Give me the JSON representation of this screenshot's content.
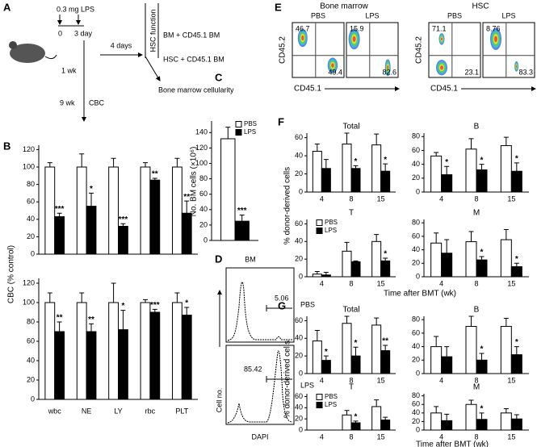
{
  "panel_letters": [
    "A",
    "B",
    "C",
    "D",
    "E",
    "F",
    "G"
  ],
  "panel_a": {
    "dose": "0.3 mg LPS",
    "day0": "0",
    "day3": "3 day",
    "wait": "4 days",
    "week1": "1 wk",
    "week9": "9 wk",
    "cbc": "CBC",
    "hsc_function": "HSC function",
    "bm_transplant": "BM + CD45.1 BM",
    "hsc_transplant": "HSC + CD45.1 BM",
    "cellularity": "Bone marrow cellularity"
  },
  "panel_d": {
    "title": "BM",
    "pbs": "PBS",
    "lps": "LPS",
    "pbs_gate": "5.06",
    "lps_gate": "85.42",
    "ylabel": "Cell no.",
    "xlabel": "DAPI"
  },
  "panel_e": {
    "groups": [
      {
        "title": "Bone marrow",
        "ylabel": "CD45.2",
        "xlabel": "CD45.1",
        "plots": [
          {
            "label": "PBS",
            "upper_left": "46.7",
            "lower_right": "49.4"
          },
          {
            "label": "LPS",
            "upper_left": "15.9",
            "lower_right": "82.6"
          }
        ]
      },
      {
        "title": "HSC",
        "ylabel": "CD45.2",
        "xlabel": "CD45.1",
        "plots": [
          {
            "label": "PBS",
            "upper_left": "71.1",
            "lower_right": "23.1"
          },
          {
            "label": "LPS",
            "upper_left": "8.76",
            "lower_right": "83.3"
          }
        ]
      }
    ]
  },
  "chart_data": [
    {
      "type": "bar",
      "ylabel": "CBC (% control)",
      "categories": [
        null,
        null,
        null,
        null,
        null
      ],
      "series": [
        {
          "color": "#ffffff",
          "values": [
            100,
            100,
            100,
            100,
            100
          ],
          "errors": [
            5,
            15,
            10,
            5,
            10
          ]
        },
        {
          "color": "#000000",
          "values": [
            43,
            55,
            32,
            85,
            47
          ],
          "errors": [
            4,
            15,
            3,
            2,
            14
          ]
        }
      ],
      "annotations": [
        "***",
        "*",
        "***",
        "**",
        "**"
      ],
      "ylim": [
        0,
        125
      ],
      "yticks": [
        0,
        20,
        40,
        60,
        80,
        100,
        120
      ]
    },
    {
      "type": "bar",
      "categories": [
        "wbc",
        "NE",
        "LY",
        "rbc",
        "PLT"
      ],
      "series": [
        {
          "color": "#ffffff",
          "values": [
            100,
            100,
            100,
            100,
            100
          ],
          "errors": [
            10,
            10,
            20,
            3,
            10
          ]
        },
        {
          "color": "#000000",
          "values": [
            70,
            70,
            72,
            90,
            87
          ],
          "errors": [
            10,
            8,
            20,
            3,
            8
          ]
        }
      ],
      "annotations": [
        "**",
        "**",
        "*",
        "***",
        "*"
      ],
      "ylim": [
        0,
        125
      ],
      "yticks": [
        0,
        20,
        40,
        60,
        80,
        100,
        120
      ]
    },
    {
      "type": "bar",
      "ylabel": "No. BM cells (×10⁶)",
      "categories": [
        null
      ],
      "legend": "top-right",
      "series": [
        {
          "name": "PBS",
          "color": "#ffffff",
          "values": [
            132
          ],
          "errors": [
            15
          ]
        },
        {
          "name": "LPS",
          "color": "#000000",
          "values": [
            25
          ],
          "errors": [
            8
          ]
        }
      ],
      "annotations": [
        "***"
      ],
      "ylim": [
        0,
        155
      ],
      "yticks": [
        0,
        20,
        40,
        60,
        80,
        100,
        120,
        140
      ]
    },
    {
      "type": "bar",
      "title": "Total",
      "ylabel": "% donor-derived cells",
      "categories": [
        "4",
        "8",
        "15"
      ],
      "series": [
        {
          "color": "#ffffff",
          "values": [
            45,
            53,
            52
          ],
          "errors": [
            8,
            12,
            12
          ]
        },
        {
          "color": "#000000",
          "values": [
            26,
            26,
            23
          ],
          "errors": [
            10,
            3,
            8
          ]
        }
      ],
      "annotations": [
        null,
        "*",
        "*"
      ],
      "ylim": [
        0,
        65
      ],
      "yticks": [
        0,
        20,
        40,
        60
      ]
    },
    {
      "type": "bar",
      "title": "B",
      "categories": [
        "4",
        "8",
        "15"
      ],
      "series": [
        {
          "color": "#ffffff",
          "values": [
            52,
            62,
            67
          ],
          "errors": [
            5,
            15,
            12
          ]
        },
        {
          "color": "#000000",
          "values": [
            25,
            32,
            30
          ],
          "errors": [
            12,
            8,
            12
          ]
        }
      ],
      "annotations": [
        "*",
        "*",
        "*"
      ],
      "ylim": [
        0,
        85
      ],
      "yticks": [
        0,
        20,
        40,
        60,
        80
      ]
    },
    {
      "type": "bar",
      "title": "T",
      "xlabel": "Time after BMT (wk)",
      "categories": [
        "4",
        "8",
        "15"
      ],
      "legend": "top-left",
      "series": [
        {
          "name": "PBS",
          "color": "#ffffff",
          "values": [
            3,
            29,
            40
          ],
          "errors": [
            3,
            10,
            8
          ]
        },
        {
          "name": "LPS",
          "color": "#000000",
          "values": [
            2,
            17,
            18
          ],
          "errors": [
            3,
            1,
            3
          ]
        }
      ],
      "annotations": [
        null,
        null,
        "*"
      ],
      "ylim": [
        0,
        65
      ],
      "yticks": [
        0,
        20,
        40,
        60
      ]
    },
    {
      "type": "bar",
      "title": "M",
      "categories": [
        "4",
        "8",
        "15"
      ],
      "series": [
        {
          "color": "#ffffff",
          "values": [
            50,
            52,
            55
          ],
          "errors": [
            15,
            15,
            15
          ]
        },
        {
          "color": "#000000",
          "values": [
            35,
            25,
            15
          ],
          "errors": [
            20,
            5,
            5
          ]
        }
      ],
      "annotations": [
        null,
        "*",
        "*"
      ],
      "ylim": [
        0,
        85
      ],
      "yticks": [
        0,
        20,
        40,
        60,
        80
      ]
    },
    {
      "type": "bar",
      "title": "Total",
      "ylabel": "% donor-derived cells",
      "categories": [
        "4",
        "8",
        "15"
      ],
      "series": [
        {
          "color": "#ffffff",
          "values": [
            37,
            57,
            55
          ],
          "errors": [
            12,
            8,
            8
          ]
        },
        {
          "color": "#000000",
          "values": [
            15,
            20,
            26
          ],
          "errors": [
            5,
            10,
            6
          ]
        }
      ],
      "annotations": [
        "*",
        "*",
        "**"
      ],
      "ylim": [
        0,
        65
      ],
      "yticks": [
        0,
        20,
        40,
        60
      ]
    },
    {
      "type": "bar",
      "title": "B",
      "categories": [
        "4",
        "8",
        "15"
      ],
      "series": [
        {
          "color": "#ffffff",
          "values": [
            40,
            70,
            70
          ],
          "errors": [
            15,
            15,
            12
          ]
        },
        {
          "color": "#000000",
          "values": [
            25,
            20,
            28
          ],
          "errors": [
            15,
            10,
            12
          ]
        }
      ],
      "annotations": [
        null,
        "*",
        "*"
      ],
      "ylim": [
        0,
        85
      ],
      "yticks": [
        0,
        20,
        40,
        60,
        80
      ]
    },
    {
      "type": "bar",
      "title": "T",
      "xlabel": "Time after BMT (wk)",
      "categories": [
        "4",
        "8",
        "15"
      ],
      "legend": "top-left",
      "series": [
        {
          "name": "PBS",
          "color": "#ffffff",
          "values": [
            0,
            27,
            42
          ],
          "errors": [
            0,
            8,
            12
          ]
        },
        {
          "name": "LPS",
          "color": "#000000",
          "values": [
            0,
            13,
            18
          ],
          "errors": [
            0,
            3,
            5
          ]
        }
      ],
      "annotations": [
        null,
        "*",
        null
      ],
      "ylim": [
        0,
        65
      ],
      "yticks": [
        0,
        20,
        40,
        60
      ]
    },
    {
      "type": "bar",
      "title": "M",
      "categories": [
        "4",
        "8",
        "15"
      ],
      "series": [
        {
          "color": "#ffffff",
          "values": [
            40,
            60,
            40
          ],
          "errors": [
            15,
            10,
            10
          ]
        },
        {
          "color": "#000000",
          "values": [
            22,
            25,
            26
          ],
          "errors": [
            15,
            15,
            10
          ]
        }
      ],
      "annotations": [
        null,
        "*",
        null
      ],
      "ylim": [
        0,
        85
      ],
      "yticks": [
        0,
        20,
        40,
        60,
        80
      ]
    }
  ]
}
